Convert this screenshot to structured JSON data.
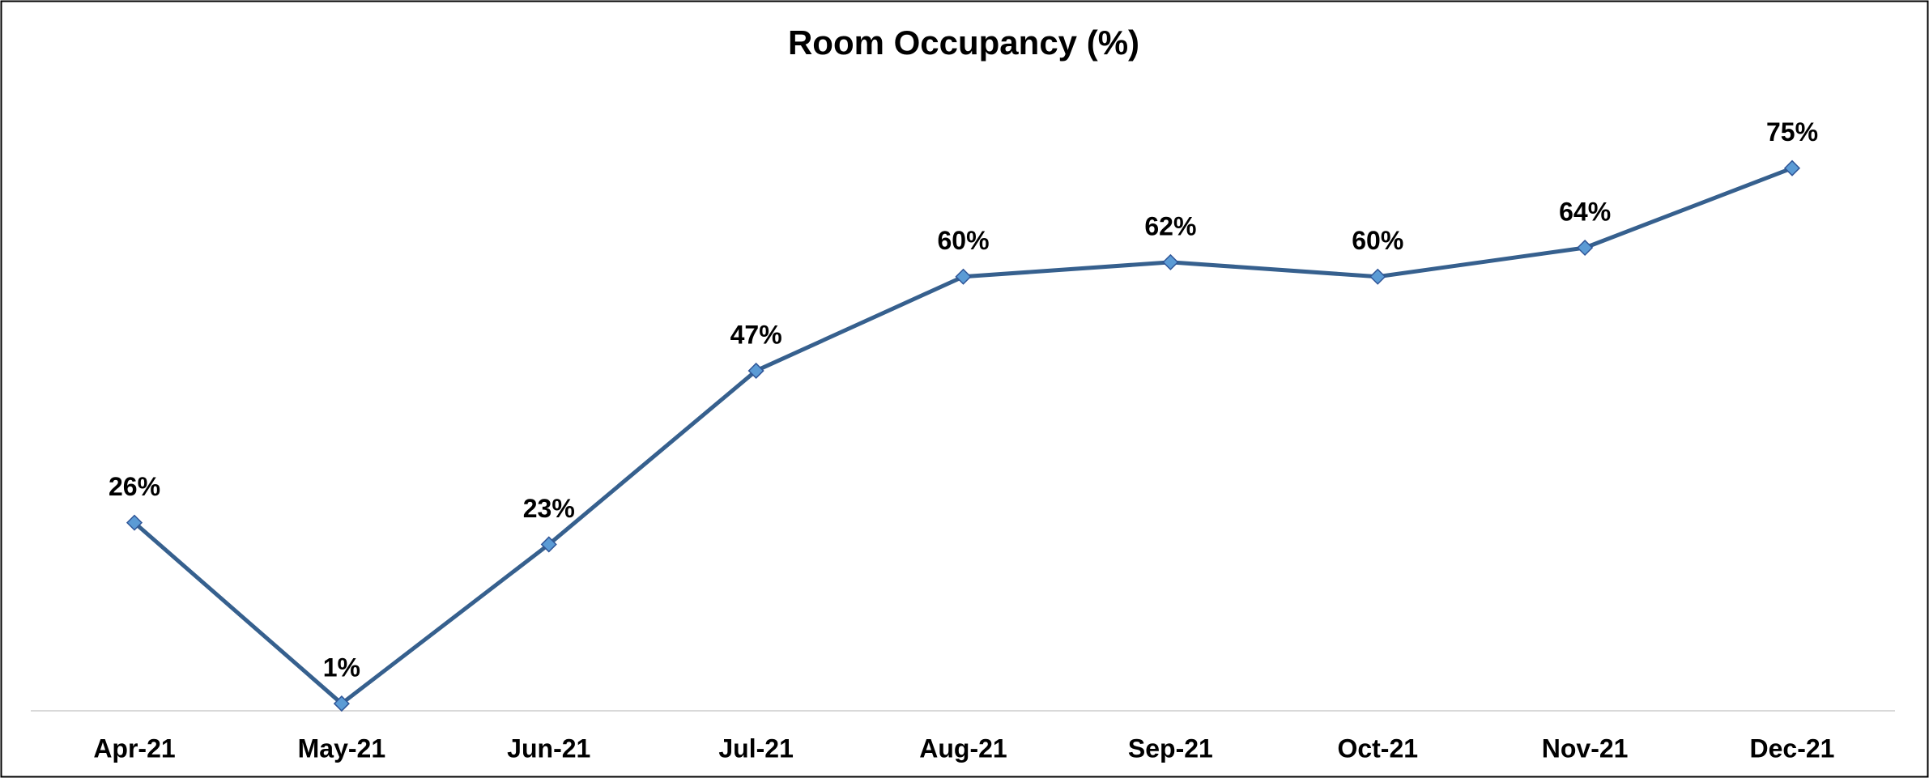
{
  "chart_data": {
    "type": "line",
    "title": "Room Occupancy (%)",
    "categories": [
      "Apr-21",
      "May-21",
      "Jun-21",
      "Jul-21",
      "Aug-21",
      "Sep-21",
      "Oct-21",
      "Nov-21",
      "Dec-21"
    ],
    "values": [
      26,
      1,
      23,
      47,
      60,
      62,
      60,
      64,
      75
    ],
    "value_labels": [
      "26%",
      "1%",
      "23%",
      "47%",
      "60%",
      "62%",
      "60%",
      "64%",
      "75%"
    ],
    "color": "#36608e",
    "marker_color": "#5b9bd5",
    "ylim": [
      0,
      80
    ]
  }
}
